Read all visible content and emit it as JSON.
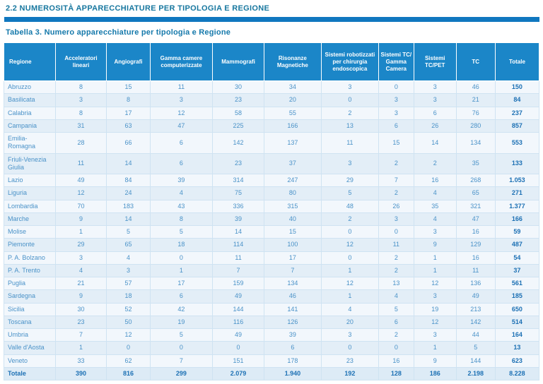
{
  "page": {
    "section_title": "2.2 NUMEROSITÀ APPARECCHIATURE PER TIPOLOGIA E REGIONE",
    "table_caption": "Tabella 3. Numero apparecchiature per tipologia e Regione"
  },
  "colors": {
    "header_bg": "#1b86c8",
    "title_text": "#17779f",
    "divider_bar": "#1077bf",
    "cell_text": "#4a92c8",
    "total_text": "#1c70b4",
    "row_light": "#f2f7fc",
    "row_dark": "#e3eef7",
    "grid_border": "#cfe3f2"
  },
  "table": {
    "columns": [
      "Regione",
      "Acceleratori lineari",
      "Angiografi",
      "Gamma camere computerizzate",
      "Mammografi",
      "Risonanze Magnetiche",
      "Sistemi robotizzati per chirurgia endoscopica",
      "Sistemi TC/ Gamma Camera",
      "Sistemi TC/PET",
      "TC",
      "Totale"
    ],
    "rows": [
      {
        "region": "Abruzzo",
        "values": [
          "8",
          "15",
          "11",
          "30",
          "34",
          "3",
          "0",
          "3",
          "46"
        ],
        "total": "150"
      },
      {
        "region": "Basilicata",
        "values": [
          "3",
          "8",
          "3",
          "23",
          "20",
          "0",
          "3",
          "3",
          "21"
        ],
        "total": "84"
      },
      {
        "region": "Calabria",
        "values": [
          "8",
          "17",
          "12",
          "58",
          "55",
          "2",
          "3",
          "6",
          "76"
        ],
        "total": "237"
      },
      {
        "region": "Campania",
        "values": [
          "31",
          "63",
          "47",
          "225",
          "166",
          "13",
          "6",
          "26",
          "280"
        ],
        "total": "857"
      },
      {
        "region": "Emilia-Romagna",
        "values": [
          "28",
          "66",
          "6",
          "142",
          "137",
          "11",
          "15",
          "14",
          "134"
        ],
        "total": "553"
      },
      {
        "region": "Friuli-Venezia Giulia",
        "values": [
          "11",
          "14",
          "6",
          "23",
          "37",
          "3",
          "2",
          "2",
          "35"
        ],
        "total": "133"
      },
      {
        "region": "Lazio",
        "values": [
          "49",
          "84",
          "39",
          "314",
          "247",
          "29",
          "7",
          "16",
          "268"
        ],
        "total": "1.053"
      },
      {
        "region": "Liguria",
        "values": [
          "12",
          "24",
          "4",
          "75",
          "80",
          "5",
          "2",
          "4",
          "65"
        ],
        "total": "271"
      },
      {
        "region": "Lombardia",
        "values": [
          "70",
          "183",
          "43",
          "336",
          "315",
          "48",
          "26",
          "35",
          "321"
        ],
        "total": "1.377"
      },
      {
        "region": "Marche",
        "values": [
          "9",
          "14",
          "8",
          "39",
          "40",
          "2",
          "3",
          "4",
          "47"
        ],
        "total": "166"
      },
      {
        "region": "Molise",
        "values": [
          "1",
          "5",
          "5",
          "14",
          "15",
          "0",
          "0",
          "3",
          "16"
        ],
        "total": "59"
      },
      {
        "region": "Piemonte",
        "values": [
          "29",
          "65",
          "18",
          "114",
          "100",
          "12",
          "11",
          "9",
          "129"
        ],
        "total": "487"
      },
      {
        "region": "P. A. Bolzano",
        "values": [
          "3",
          "4",
          "0",
          "11",
          "17",
          "0",
          "2",
          "1",
          "16"
        ],
        "total": "54"
      },
      {
        "region": "P. A. Trento",
        "values": [
          "4",
          "3",
          "1",
          "7",
          "7",
          "1",
          "2",
          "1",
          "11"
        ],
        "total": "37"
      },
      {
        "region": "Puglia",
        "values": [
          "21",
          "57",
          "17",
          "159",
          "134",
          "12",
          "13",
          "12",
          "136"
        ],
        "total": "561"
      },
      {
        "region": "Sardegna",
        "values": [
          "9",
          "18",
          "6",
          "49",
          "46",
          "1",
          "4",
          "3",
          "49"
        ],
        "total": "185"
      },
      {
        "region": "Sicilia",
        "values": [
          "30",
          "52",
          "42",
          "144",
          "141",
          "4",
          "5",
          "19",
          "213"
        ],
        "total": "650"
      },
      {
        "region": "Toscana",
        "values": [
          "23",
          "50",
          "19",
          "116",
          "126",
          "20",
          "6",
          "12",
          "142"
        ],
        "total": "514"
      },
      {
        "region": "Umbria",
        "values": [
          "7",
          "12",
          "5",
          "49",
          "39",
          "3",
          "2",
          "3",
          "44"
        ],
        "total": "164"
      },
      {
        "region": "Valle d'Aosta",
        "values": [
          "1",
          "0",
          "0",
          "0",
          "6",
          "0",
          "0",
          "1",
          "5"
        ],
        "total": "13"
      },
      {
        "region": "Veneto",
        "values": [
          "33",
          "62",
          "7",
          "151",
          "178",
          "23",
          "16",
          "9",
          "144"
        ],
        "total": "623"
      }
    ],
    "total_row": {
      "label": "Totale",
      "values": [
        "390",
        "816",
        "299",
        "2.079",
        "1.940",
        "192",
        "128",
        "186",
        "2.198"
      ],
      "total": "8.228"
    }
  }
}
